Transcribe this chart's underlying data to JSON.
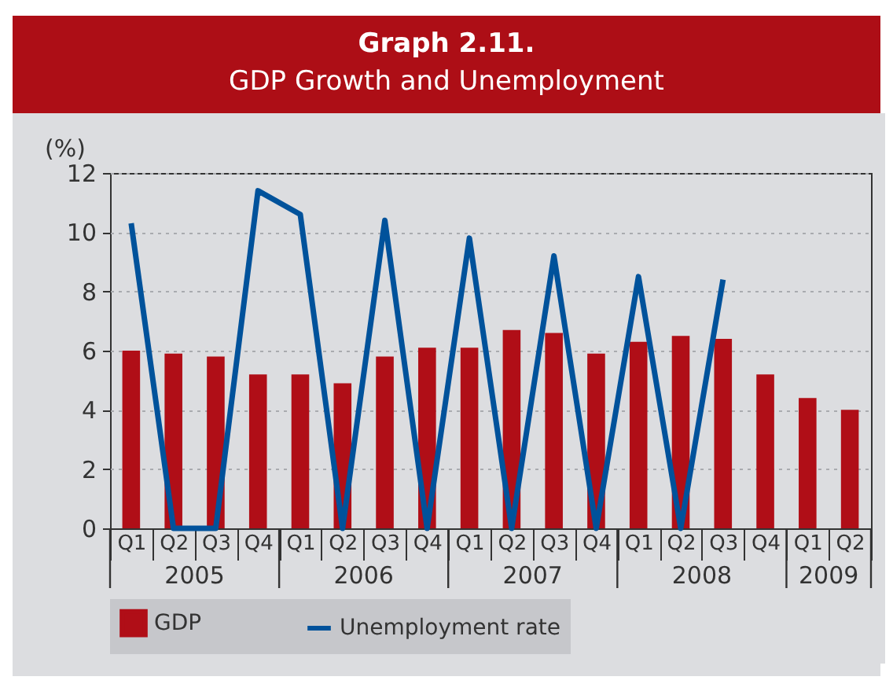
{
  "chart_data": {
    "type": "bar",
    "title": "Graph 2.11.",
    "subtitle": "GDP Growth and Unemployment",
    "ylabel": "(%)",
    "categories": [
      "Q1",
      "Q2",
      "Q3",
      "Q4",
      "Q1",
      "Q2",
      "Q3",
      "Q4",
      "Q1",
      "Q2",
      "Q3",
      "Q4",
      "Q1",
      "Q2",
      "Q3",
      "Q4",
      "Q1",
      "Q2"
    ],
    "annotations": [
      "2005",
      "2006",
      "2007",
      "2008",
      "2009"
    ],
    "series": [
      {
        "name": "GDP",
        "color": "#b00e17",
        "values": [
          6.0,
          5.9,
          5.8,
          5.2,
          5.2,
          4.9,
          5.8,
          6.1,
          6.1,
          6.7,
          6.6,
          5.9,
          6.3,
          6.5,
          6.4,
          5.2,
          4.4,
          4.0
        ]
      },
      {
        "name": "Unemployment rate",
        "type": "line",
        "color": "#00529b",
        "values": [
          10.3,
          0,
          0,
          11.4,
          10.6,
          0,
          10.4,
          0,
          9.8,
          0,
          9.2,
          0,
          8.5,
          0,
          8.4,
          null,
          null,
          null
        ]
      }
    ],
    "ylim": [
      0,
      12
    ],
    "yticks": [
      0,
      2,
      4,
      6,
      8,
      10,
      12
    ],
    "grid": "y",
    "legend": "bottom"
  }
}
